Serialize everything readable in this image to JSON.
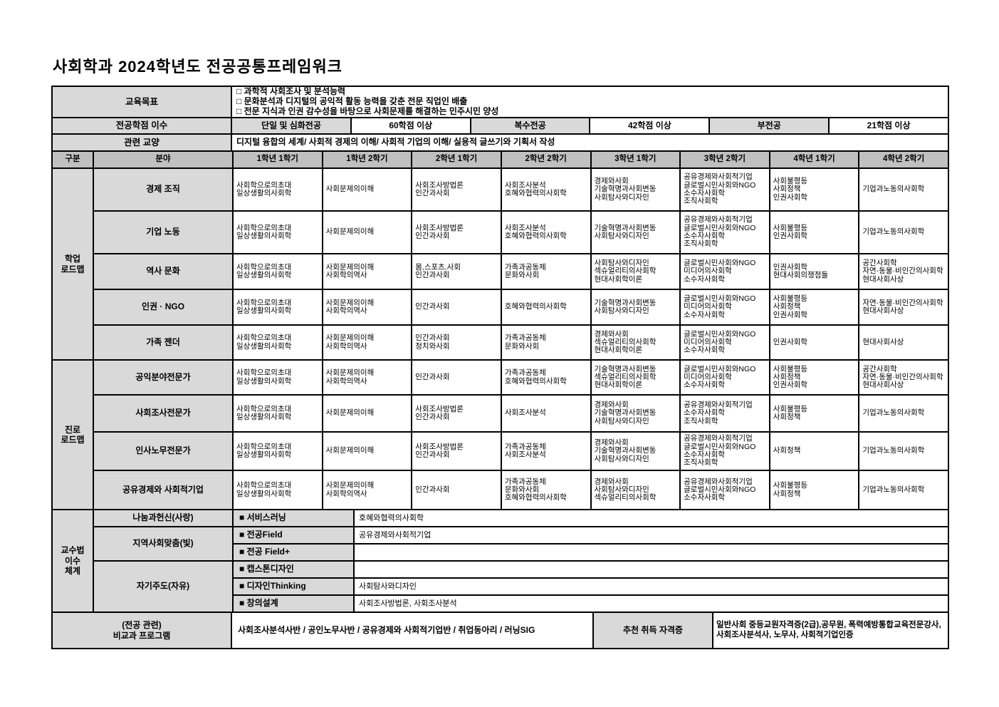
{
  "title": "사회학과 2024학년도 전공공통프레임워크",
  "colors": {
    "border": "#000000",
    "header_bg": "#c0c0c0",
    "label_bg": "#d9d9d9",
    "content_bg": "#ffffff"
  },
  "top": {
    "education_goal_label": "교육목표",
    "education_goals": "□ 과학적 사회조사 및 분석능력\n□ 문화분석과 디지털의 공익적 활동 능력을 갖춘 전문 직업인 배출\n□ 전문 지식과 인권 감수성을 바탕으로 사회문제를 해결하는 민주시민 양성",
    "credit_label": "전공학점 이수",
    "credits": [
      "단일 및 심화전공",
      "60학점 이상",
      "복수전공",
      "42학점 이상",
      "부전공",
      "21학점 이상"
    ],
    "liberal_label": "관련 교양",
    "liberal": "디지털 융합의 세계/ 사회적 경제의 이해/ 사회적 기업의 이해/ 실용적 글쓰기와 기획서 작성"
  },
  "matrix": {
    "headers": [
      "구분",
      "분야",
      "1학년 1학기",
      "1학년 2학기",
      "2학년 1학기",
      "2학년 2학기",
      "3학년 1학기",
      "3학년 2학기",
      "4학년 1학기",
      "4학년 2학기"
    ],
    "groups": [
      {
        "label": "학업\n로드맵",
        "rows": [
          {
            "field": "경제 조직",
            "cells": [
              "사회학으로의초대\n일상생활의사회학",
              "사회문제의이해",
              "사회조사방법론\n인간과사회",
              "사회조사분석\n호혜와협력의사회학",
              "경제와사회\n기술혁명과사회변동\n사회탐사와디자인",
              "공유경제와사회적기업\n글로벌시민사회와NGO\n소수자사회학\n조직사회학",
              "사회불평등\n사회정책\n인권사회학",
              "기업과노동의사회학"
            ]
          },
          {
            "field": "기업 노동",
            "cells": [
              "사회학으로의초대\n일상생활의사회학",
              "사회문제의이해",
              "사회조사방법론\n인간과사회",
              "사회조사분석\n호혜와협력의사회학",
              "기술혁명과사회변동\n사회탐사와디자인",
              "공유경제와사회적기업\n글로벌시민사회와NGO\n소수자사회학\n조직사회학",
              "사회불평등\n인권사회학",
              "기업과노동의사회학"
            ]
          },
          {
            "field": "역사 문화",
            "cells": [
              "사회학으로의초대\n일상생활의사회학",
              "사회문제의이해\n사회학의역사",
              "몸,스포츠,사회\n인간과사회",
              "가족과공동체\n문화와사회",
              "사회탐사와디자인\n섹슈얼리티의사회학\n현대사회학이론",
              "글로벌시민사회와NGO\n미디어의사회학\n소수자사회학",
              "인권사회학\n현대사회의쟁점들",
              "공간사회학\n자연·동물·비인간의사회학\n현대사회사상"
            ]
          },
          {
            "field": "인권 · NGO",
            "cells": [
              "사회학으로의초대\n일상생활의사회학",
              "사회문제의이해\n사회학의역사",
              "인간과사회",
              "호혜와협력의사회학",
              "기술혁명과사회변동\n사회탐사와디자인",
              "글로벌시민사회와NGO\n미디어의사회학\n소수자사회학",
              "사회불평등\n사회정책\n인권사회학",
              "자연·동물·비인간의사회학\n현대사회사상"
            ]
          },
          {
            "field": "가족 젠더",
            "cells": [
              "사회학으로의초대\n일상생활의사회학",
              "사회문제의이해\n사회학의역사",
              "인간과사회\n정치와사회",
              "가족과공동체\n문화와사회",
              "경제와사회\n섹슈얼리티의사회학\n현대사회학이론",
              "글로벌시민사회와NGO\n미디어의사회학\n소수자사회학",
              "인권사회학",
              "현대사회사상"
            ]
          }
        ]
      },
      {
        "label": "진로\n로드맵",
        "rows": [
          {
            "field": "공익분야전문가",
            "cells": [
              "사회학으로의초대\n일상생활의사회학",
              "사회문제의이해\n사회학의역사",
              "인간과사회",
              "가족과공동체\n호혜와협력의사회학",
              "기술혁명과사회변동\n섹슈얼리티의사회학\n현대사회학이론",
              "글로벌시민사회와NGO\n미디어의사회학\n소수자사회학",
              "사회불평등\n사회정책\n인권사회학",
              "공간사회학\n자연·동물·비인간의사회학\n현대사회사상"
            ]
          },
          {
            "field": "사회조사전문가",
            "cells": [
              "사회학으로의초대\n일상생활의사회학",
              "사회문제의이해",
              "사회조사방법론\n인간과사회",
              "사회조사분석",
              "경제와사회\n기술혁명과사회변동\n사회탐사와디자인",
              "공유경제와사회적기업\n소수자사회학\n조직사회학",
              "사회불평등\n사회정책",
              "기업과노동의사회학"
            ]
          },
          {
            "field": "인사노무전문가",
            "cells": [
              "사회학으로의초대\n일상생활의사회학",
              "사회문제의이해",
              "사회조사방법론\n인간과사회",
              "가족과공동체\n사회조사분석",
              "경제와사회\n기술혁명과사회변동\n사회탐사와디자인",
              "공유경제와사회적기업\n글로벌시민사회와NGO\n소수자사회학\n조직사회학",
              "사회정책",
              "기업과노동의사회학"
            ]
          },
          {
            "field": "공유경제와 사회적기업",
            "cells": [
              "사회학으로의초대\n일상생활의사회학",
              "사회문제의이해\n사회학의역사",
              "인간과사회",
              "가족과공동체\n문화와사회\n호혜와협력의사회학",
              "경제와사회\n사회탐사와디자인\n섹슈얼리티의사회학",
              "공유경제와사회적기업\n글로벌시민사회와NGO\n소수자사회학",
              "사회불평등\n사회정책",
              "기업과노동의사회학"
            ]
          }
        ]
      }
    ]
  },
  "pedagogy": {
    "label": "교수법\n이수\n체계",
    "categories": [
      {
        "label": "나눔과헌신(사랑)"
      },
      {
        "label": "지역사회맞춤(빛)"
      },
      {
        "label": "자기주도(자유)"
      }
    ],
    "rows": [
      {
        "method": "■ 서비스러닝",
        "courses": "호혜와협력의사회학"
      },
      {
        "method": "■ 전공Field",
        "courses": "공유경제와사회적기업"
      },
      {
        "method": "■ 전공 Field+",
        "courses": ""
      },
      {
        "method": "■ 캡스톤디자인",
        "courses": ""
      },
      {
        "method": "■ 디자인Thinking",
        "courses": "사회탐사와디자인"
      },
      {
        "method": "■ 창의설계",
        "courses": "사회조사방법론,  사회조사분석"
      }
    ]
  },
  "extra": {
    "label": "(전공 관련)\n비교과 프로그램",
    "programs": "사회조사분석사반 / 공인노무사반 / 공유경제와 사회적기업반 / 취업동아리 / 러닝SIG",
    "license_label": "추천 취득 자격증",
    "licenses": "일반사회 중등교원자격증(2급),공무원, 폭력예방통합교육전문강사, 사회조사분석사, 노무사, 사회적기업인증"
  }
}
